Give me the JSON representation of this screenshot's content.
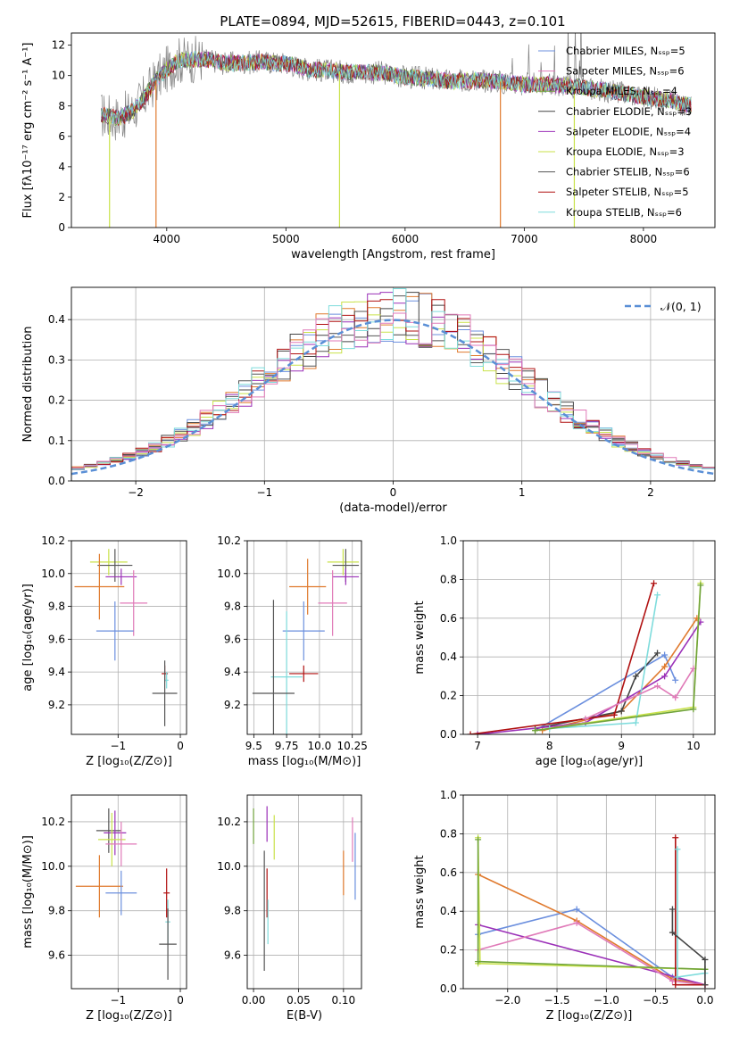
{
  "figure": {
    "title": "PLATE=0894, MJD=52615, FIBERID=0443, z=0.101"
  },
  "colors": {
    "c1": "#6b8fde",
    "c2": "#e07a2e",
    "c3": "#444444",
    "c4": "#9b30b8",
    "c5": "#c9e24a",
    "c6": "#555555",
    "c7": "#b01010",
    "c8": "#7fdcdc",
    "c_pink": "#e07ab8",
    "c_green": "#6fa33a",
    "gaussian": "#5a8fd6",
    "grid": "#b0b0b0",
    "spectrum_gray": "#808080"
  },
  "chart_data": [
    {
      "id": "spectrum",
      "type": "line",
      "xlabel": "wavelength [Angstrom, rest frame]",
      "ylabel": "Flux [fλ10⁻¹⁷ erg cm⁻² s⁻¹ A⁻¹]",
      "xlim": [
        3200,
        8600
      ],
      "ylim": [
        0,
        12.8
      ],
      "xticks": [
        "4000",
        "5000",
        "6000",
        "7000",
        "8000"
      ],
      "yticks": [
        "0",
        "2",
        "4",
        "6",
        "8",
        "10",
        "12"
      ],
      "grid": false,
      "legend_position": "top-right",
      "series": [
        {
          "name": "Chabrier MILES, Nₛₛₚ=5",
          "color": "#6b8fde"
        },
        {
          "name": "Salpeter MILES, Nₛₛₚ=6",
          "color": "#e07ab8"
        },
        {
          "name": "Kroupa MILES, Nₛₛₚ=4",
          "color": "#6fa33a"
        },
        {
          "name": "Chabrier ELODIE, Nₛₛₚ=3",
          "color": "#444444"
        },
        {
          "name": "Salpeter ELODIE, Nₛₛₚ=4",
          "color": "#9b30b8"
        },
        {
          "name": "Kroupa ELODIE, Nₛₛₚ=3",
          "color": "#c9e24a"
        },
        {
          "name": "Chabrier STELIB, Nₛₛₚ=6",
          "color": "#555555"
        },
        {
          "name": "Salpeter STELIB, Nₛₛₚ=5",
          "color": "#b01010"
        },
        {
          "name": "Kroupa STELIB, Nₛₛₚ=6",
          "color": "#7fdcdc"
        }
      ],
      "continuum": {
        "x": [
          3450,
          3600,
          3700,
          3800,
          3900,
          4000,
          4100,
          4300,
          4500,
          4800,
          5000,
          5200,
          5400,
          5600,
          5800,
          6000,
          6200,
          6400,
          6600,
          6800,
          7000,
          7200,
          7400,
          7600,
          7800,
          8000,
          8200,
          8400
        ],
        "y": [
          7.4,
          7.2,
          7.6,
          8.4,
          9.6,
          10.4,
          11.0,
          11.1,
          10.8,
          10.9,
          10.8,
          10.4,
          10.3,
          10.2,
          10.2,
          9.9,
          9.8,
          9.6,
          9.7,
          9.6,
          9.4,
          9.4,
          9.3,
          9.1,
          8.9,
          8.6,
          8.4,
          8.0
        ]
      },
      "spikes_to_zero": [
        3520,
        3910,
        5450,
        6800,
        7420
      ]
    },
    {
      "id": "residuals",
      "type": "histogram",
      "xlabel": "(data-model)/error",
      "ylabel": "Normed distribution",
      "xlim": [
        -2.5,
        2.5
      ],
      "ylim": [
        0,
        0.48
      ],
      "xticks": [
        "−2",
        "−1",
        "0",
        "1",
        "2"
      ],
      "yticks": [
        "0.0",
        "0.1",
        "0.2",
        "0.3",
        "0.4"
      ],
      "grid": true,
      "legend": {
        "label": "𝒩(0, 1)",
        "position": "top-right"
      },
      "bin_width": 0.1
    },
    {
      "id": "age_vs_Z",
      "type": "errorbar",
      "xlabel": "Z [log₁₀(Z/Z⊙)]",
      "ylabel": "age  [log₁₀(age/yr)]",
      "xlim": [
        -1.75,
        0.1
      ],
      "ylim": [
        9.02,
        10.2
      ],
      "xticks": [
        "−1",
        "0"
      ],
      "yticks": [
        "9.2",
        "9.4",
        "9.6",
        "9.8",
        "10.0",
        "10.2"
      ],
      "grid": true,
      "points": [
        {
          "x": -1.15,
          "y": 10.07,
          "xerr": 0.3,
          "yerr": 0.08,
          "color": "#c9e24a"
        },
        {
          "x": -1.05,
          "y": 10.05,
          "xerr": 0.28,
          "yerr": 0.1,
          "color": "#555555"
        },
        {
          "x": -0.95,
          "y": 9.98,
          "xerr": 0.25,
          "yerr": 0.05,
          "color": "#9b30b8"
        },
        {
          "x": -1.3,
          "y": 9.92,
          "xerr": 0.4,
          "yerr": 0.2,
          "color": "#e07a2e"
        },
        {
          "x": -0.75,
          "y": 9.82,
          "xerr": 0.22,
          "yerr": 0.2,
          "color": "#e07ab8"
        },
        {
          "x": -1.05,
          "y": 9.65,
          "xerr": 0.3,
          "yerr": 0.18,
          "color": "#6b8fde"
        },
        {
          "x": -0.25,
          "y": 9.39,
          "xerr": 0.05,
          "yerr": 0.05,
          "color": "#b01010"
        },
        {
          "x": -0.22,
          "y": 9.35,
          "xerr": 0.03,
          "yerr": 0.05,
          "color": "#7fdcdc"
        },
        {
          "x": -0.25,
          "y": 9.27,
          "xerr": 0.2,
          "yerr": 0.2,
          "color": "#555555"
        }
      ]
    },
    {
      "id": "age_vs_mass",
      "type": "errorbar",
      "xlabel": "mass [log₁₀(M/M⊙)]",
      "ylabel": "",
      "xlim": [
        9.45,
        10.32
      ],
      "ylim": [
        9.02,
        10.2
      ],
      "xticks": [
        "9.5",
        "9.75",
        "10.0",
        "10.25"
      ],
      "yticks": [
        "9.2",
        "9.4",
        "9.6",
        "9.8",
        "10.0",
        "10.2"
      ],
      "grid": true,
      "points": [
        {
          "x": 10.18,
          "y": 10.07,
          "xerr": 0.12,
          "yerr": 0.08,
          "color": "#c9e24a"
        },
        {
          "x": 10.2,
          "y": 10.05,
          "xerr": 0.1,
          "yerr": 0.1,
          "color": "#555555"
        },
        {
          "x": 10.2,
          "y": 9.98,
          "xerr": 0.1,
          "yerr": 0.05,
          "color": "#9b30b8"
        },
        {
          "x": 9.91,
          "y": 9.92,
          "xerr": 0.14,
          "yerr": 0.17,
          "color": "#e07a2e"
        },
        {
          "x": 10.1,
          "y": 9.82,
          "xerr": 0.11,
          "yerr": 0.2,
          "color": "#e07ab8"
        },
        {
          "x": 9.88,
          "y": 9.65,
          "xerr": 0.16,
          "yerr": 0.18,
          "color": "#6b8fde"
        },
        {
          "x": 9.88,
          "y": 9.39,
          "xerr": 0.11,
          "yerr": 0.05,
          "color": "#b01010"
        },
        {
          "x": 9.75,
          "y": 9.37,
          "xerr": 0.12,
          "yerr": 0.4,
          "color": "#7fdcdc"
        },
        {
          "x": 9.65,
          "y": 9.27,
          "xerr": 0.16,
          "yerr": 0.57,
          "color": "#555555"
        }
      ]
    },
    {
      "id": "weight_vs_age",
      "type": "line",
      "xlabel": "age  [log₁₀(age/yr)]",
      "ylabel": "mass weight",
      "xlim": [
        6.8,
        10.3
      ],
      "ylim": [
        0,
        1.0
      ],
      "xticks": [
        "7",
        "8",
        "9",
        "10"
      ],
      "yticks": [
        "0.0",
        "0.2",
        "0.4",
        "0.6",
        "0.8",
        "1.0"
      ],
      "grid": true,
      "series": [
        {
          "color": "#6b8fde",
          "x": [
            7.8,
            9.6,
            9.75
          ],
          "y": [
            0.02,
            0.41,
            0.28
          ]
        },
        {
          "color": "#e07a2e",
          "x": [
            7.9,
            9.0,
            9.6,
            10.05
          ],
          "y": [
            0.02,
            0.12,
            0.35,
            0.6
          ]
        },
        {
          "color": "#444444",
          "x": [
            7.8,
            9.0,
            9.2,
            9.5
          ],
          "y": [
            0.03,
            0.12,
            0.3,
            0.42
          ]
        },
        {
          "color": "#9b30b8",
          "x": [
            7.0,
            8.5,
            9.6,
            10.1
          ],
          "y": [
            0.0,
            0.06,
            0.3,
            0.58
          ]
        },
        {
          "color": "#c9e24a",
          "x": [
            7.8,
            10.0,
            10.1
          ],
          "y": [
            0.02,
            0.14,
            0.78
          ]
        },
        {
          "color": "#b01010",
          "x": [
            6.9,
            8.9,
            9.45
          ],
          "y": [
            0.0,
            0.1,
            0.78
          ]
        },
        {
          "color": "#7fdcdc",
          "x": [
            8.0,
            9.2,
            9.5
          ],
          "y": [
            0.03,
            0.06,
            0.72
          ]
        },
        {
          "color": "#e07ab8",
          "x": [
            8.5,
            9.5,
            9.75,
            10.0
          ],
          "y": [
            0.08,
            0.25,
            0.19,
            0.34
          ]
        },
        {
          "color": "#6fa33a",
          "x": [
            7.8,
            10.0,
            10.1
          ],
          "y": [
            0.02,
            0.13,
            0.77
          ]
        }
      ]
    },
    {
      "id": "mass_vs_Z",
      "type": "errorbar",
      "xlabel": "Z [log₁₀(Z/Z⊙)]",
      "ylabel": "mass [log₁₀(M/M⊙)]",
      "xlim": [
        -1.75,
        0.1
      ],
      "ylim": [
        9.45,
        10.32
      ],
      "xticks": [
        "−1",
        "0"
      ],
      "yticks": [
        "9.6",
        "9.8",
        "10.0",
        "10.2"
      ],
      "grid": true,
      "points": [
        {
          "x": -1.15,
          "y": 10.16,
          "xerr": 0.2,
          "yerr": 0.1,
          "color": "#555555"
        },
        {
          "x": -1.05,
          "y": 10.15,
          "xerr": 0.18,
          "yerr": 0.1,
          "color": "#9b30b8"
        },
        {
          "x": -1.1,
          "y": 10.12,
          "xerr": 0.22,
          "yerr": 0.12,
          "color": "#c9e24a"
        },
        {
          "x": -0.95,
          "y": 10.1,
          "xerr": 0.25,
          "yerr": 0.1,
          "color": "#e07ab8"
        },
        {
          "x": -1.3,
          "y": 9.91,
          "xerr": 0.38,
          "yerr": 0.14,
          "color": "#e07a2e"
        },
        {
          "x": -0.95,
          "y": 9.88,
          "xerr": 0.25,
          "yerr": 0.1,
          "color": "#6b8fde"
        },
        {
          "x": -0.22,
          "y": 9.88,
          "xerr": 0.05,
          "yerr": 0.11,
          "color": "#b01010"
        },
        {
          "x": -0.2,
          "y": 9.75,
          "xerr": 0.04,
          "yerr": 0.1,
          "color": "#7fdcdc"
        },
        {
          "x": -0.2,
          "y": 9.65,
          "xerr": 0.14,
          "yerr": 0.16,
          "color": "#555555"
        }
      ]
    },
    {
      "id": "mass_vs_ebv",
      "type": "errorbar",
      "xlabel": "E(B-V)",
      "ylabel": "",
      "xlim": [
        -0.007,
        0.12
      ],
      "ylim": [
        9.45,
        10.32
      ],
      "xticks": [
        "0.00",
        "0.05",
        "0.10"
      ],
      "yticks": [
        "9.6",
        "9.8",
        "10.0",
        "10.2"
      ],
      "grid": true,
      "points": [
        {
          "x": 0.0,
          "y": 10.18,
          "xerr": 0,
          "yerr": 0.08,
          "color": "#6fa33a"
        },
        {
          "x": 0.012,
          "y": 9.8,
          "xerr": 0,
          "yerr": 0.27,
          "color": "#555555"
        },
        {
          "x": 0.015,
          "y": 10.19,
          "xerr": 0,
          "yerr": 0.08,
          "color": "#9b30b8"
        },
        {
          "x": 0.015,
          "y": 9.88,
          "xerr": 0,
          "yerr": 0.11,
          "color": "#b01010"
        },
        {
          "x": 0.016,
          "y": 9.75,
          "xerr": 0,
          "yerr": 0.1,
          "color": "#7fdcdc"
        },
        {
          "x": 0.023,
          "y": 10.13,
          "xerr": 0,
          "yerr": 0.1,
          "color": "#c9e24a"
        },
        {
          "x": 0.1,
          "y": 9.97,
          "xerr": 0,
          "yerr": 0.1,
          "color": "#e07a2e"
        },
        {
          "x": 0.11,
          "y": 10.12,
          "xerr": 0,
          "yerr": 0.1,
          "color": "#e07ab8"
        },
        {
          "x": 0.113,
          "y": 10.0,
          "xerr": 0,
          "yerr": 0.15,
          "color": "#6b8fde"
        }
      ]
    },
    {
      "id": "weight_vs_Z",
      "type": "line",
      "xlabel": "Z [log₁₀(Z/Z⊙)]",
      "ylabel": "mass weight",
      "xlim": [
        -2.45,
        0.1
      ],
      "ylim": [
        0,
        1.0
      ],
      "xticks": [
        "−2.0",
        "−1.5",
        "−1.0",
        "−0.5",
        "0.0"
      ],
      "yticks": [
        "0.0",
        "0.2",
        "0.4",
        "0.6",
        "0.8",
        "1.0"
      ],
      "grid": true,
      "series": [
        {
          "color": "#6b8fde",
          "x": [
            -2.3,
            -1.3,
            -0.33,
            0.0
          ],
          "y": [
            0.28,
            0.41,
            0.06,
            0.02
          ]
        },
        {
          "color": "#e07a2e",
          "x": [
            -2.3,
            -1.3,
            -0.33,
            0.0
          ],
          "y": [
            0.59,
            0.35,
            0.05,
            0.02
          ]
        },
        {
          "color": "#9b30b8",
          "x": [
            -2.3,
            0.0
          ],
          "y": [
            0.33,
            0.02
          ]
        },
        {
          "color": "#e07ab8",
          "x": [
            -2.3,
            -1.3,
            -0.33,
            0.0
          ],
          "y": [
            0.2,
            0.34,
            0.04,
            0.02
          ]
        },
        {
          "color": "#c9e24a",
          "x": [
            -2.3,
            -2.28,
            -2.3,
            0.0
          ],
          "y": [
            0.78,
            0.14,
            0.13,
            0.1
          ]
        },
        {
          "color": "#6fa33a",
          "x": [
            -2.3,
            -2.3,
            0.0
          ],
          "y": [
            0.77,
            0.14,
            0.1
          ]
        },
        {
          "color": "#b01010",
          "x": [
            -0.3,
            -0.3,
            0.0
          ],
          "y": [
            0.78,
            0.02,
            0.02
          ]
        },
        {
          "color": "#7fdcdc",
          "x": [
            -0.28,
            -0.28,
            0.0
          ],
          "y": [
            0.72,
            0.06,
            0.08
          ]
        },
        {
          "color": "#444444",
          "x": [
            -0.33,
            -0.33,
            0.0,
            0.0
          ],
          "y": [
            0.41,
            0.29,
            0.15,
            0.02
          ]
        }
      ]
    }
  ]
}
